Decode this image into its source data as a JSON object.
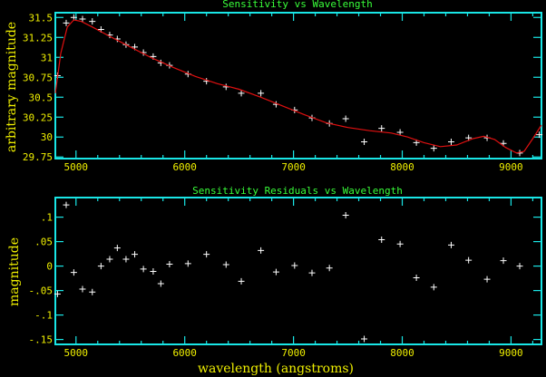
{
  "chart_data": [
    {
      "type": "scatter",
      "title": "Sensitivity vs Wavelength",
      "xlabel": "",
      "ylabel": "arbitrary magnitude",
      "xlim": [
        4810,
        9280
      ],
      "ylim": [
        29.73,
        31.56
      ],
      "xticks": [
        5000,
        6000,
        7000,
        8000,
        9000
      ],
      "yticks": [
        29.75,
        30,
        30.25,
        30.5,
        30.75,
        31,
        31.25,
        31.5
      ],
      "grid": false,
      "series": [
        {
          "marker": "plus",
          "color": "#ffffff",
          "points": [
            [
              4830,
              30.77
            ],
            [
              4910,
              31.43
            ],
            [
              4980,
              31.5
            ],
            [
              5060,
              31.48
            ],
            [
              5150,
              31.45
            ],
            [
              5230,
              31.35
            ],
            [
              5310,
              31.28
            ],
            [
              5380,
              31.23
            ],
            [
              5460,
              31.16
            ],
            [
              5540,
              31.13
            ],
            [
              5620,
              31.06
            ],
            [
              5710,
              31.01
            ],
            [
              5780,
              30.93
            ],
            [
              5860,
              30.9
            ],
            [
              6030,
              30.79
            ],
            [
              6200,
              30.7
            ],
            [
              6380,
              30.63
            ],
            [
              6520,
              30.55
            ],
            [
              6700,
              30.55
            ],
            [
              6840,
              30.41
            ],
            [
              7010,
              30.34
            ],
            [
              7170,
              30.24
            ],
            [
              7330,
              30.17
            ],
            [
              7480,
              30.23
            ],
            [
              7650,
              29.94
            ],
            [
              7810,
              30.11
            ],
            [
              7980,
              30.06
            ],
            [
              8130,
              29.93
            ],
            [
              8290,
              29.86
            ],
            [
              8450,
              29.94
            ],
            [
              8610,
              29.99
            ],
            [
              8780,
              29.99
            ],
            [
              8930,
              29.92
            ],
            [
              9080,
              29.8
            ],
            [
              9260,
              30.03
            ]
          ]
        },
        {
          "type": "line",
          "color": "#e01010",
          "points": [
            [
              4810,
              30.55
            ],
            [
              4860,
              31.05
            ],
            [
              4920,
              31.38
            ],
            [
              4980,
              31.47
            ],
            [
              5050,
              31.45
            ],
            [
              5150,
              31.38
            ],
            [
              5300,
              31.27
            ],
            [
              5500,
              31.13
            ],
            [
              5700,
              30.99
            ],
            [
              5900,
              30.87
            ],
            [
              6100,
              30.76
            ],
            [
              6300,
              30.67
            ],
            [
              6500,
              30.6
            ],
            [
              6700,
              30.5
            ],
            [
              6900,
              30.39
            ],
            [
              7100,
              30.28
            ],
            [
              7300,
              30.18
            ],
            [
              7500,
              30.12
            ],
            [
              7700,
              30.08
            ],
            [
              7900,
              30.05
            ],
            [
              8050,
              30.0
            ],
            [
              8200,
              29.93
            ],
            [
              8350,
              29.88
            ],
            [
              8500,
              29.9
            ],
            [
              8650,
              29.98
            ],
            [
              8750,
              30.01
            ],
            [
              8850,
              29.97
            ],
            [
              8950,
              29.87
            ],
            [
              9050,
              29.8
            ],
            [
              9120,
              29.82
            ],
            [
              9200,
              29.98
            ],
            [
              9280,
              30.15
            ]
          ]
        }
      ]
    },
    {
      "type": "scatter",
      "title": "Sensitivity Residuals vs Wavelength",
      "xlabel": "wavelength (angstroms)",
      "ylabel": "magnitude",
      "xlim": [
        4810,
        9280
      ],
      "ylim": [
        -0.16,
        0.14
      ],
      "xticks": [
        5000,
        6000,
        7000,
        8000,
        9000
      ],
      "yticks": [
        0.1,
        0.05,
        0,
        -0.05,
        -0.1,
        -0.15
      ],
      "ytick_labels": [
        ".1",
        ".05",
        "0",
        "-.05",
        "-.1",
        "-.15"
      ],
      "grid": false,
      "series": [
        {
          "marker": "plus",
          "color": "#ffffff",
          "points": [
            [
              4830,
              -0.057
            ],
            [
              4910,
              0.125
            ],
            [
              4980,
              -0.013
            ],
            [
              5060,
              -0.047
            ],
            [
              5150,
              -0.053
            ],
            [
              5230,
              0.0
            ],
            [
              5310,
              0.014
            ],
            [
              5380,
              0.037
            ],
            [
              5460,
              0.014
            ],
            [
              5540,
              0.024
            ],
            [
              5620,
              -0.006
            ],
            [
              5710,
              -0.011
            ],
            [
              5780,
              -0.036
            ],
            [
              5860,
              0.004
            ],
            [
              6030,
              0.005
            ],
            [
              6200,
              0.024
            ],
            [
              6380,
              0.003
            ],
            [
              6520,
              -0.031
            ],
            [
              6700,
              0.032
            ],
            [
              6840,
              -0.012
            ],
            [
              7010,
              0.001
            ],
            [
              7170,
              -0.014
            ],
            [
              7330,
              -0.004
            ],
            [
              7480,
              0.104
            ],
            [
              7650,
              -0.149
            ],
            [
              7810,
              0.054
            ],
            [
              7980,
              0.045
            ],
            [
              8130,
              -0.024
            ],
            [
              8290,
              -0.043
            ],
            [
              8450,
              0.043
            ],
            [
              8610,
              0.012
            ],
            [
              8780,
              -0.027
            ],
            [
              8930,
              0.011
            ],
            [
              9080,
              0.0
            ]
          ]
        }
      ]
    }
  ]
}
